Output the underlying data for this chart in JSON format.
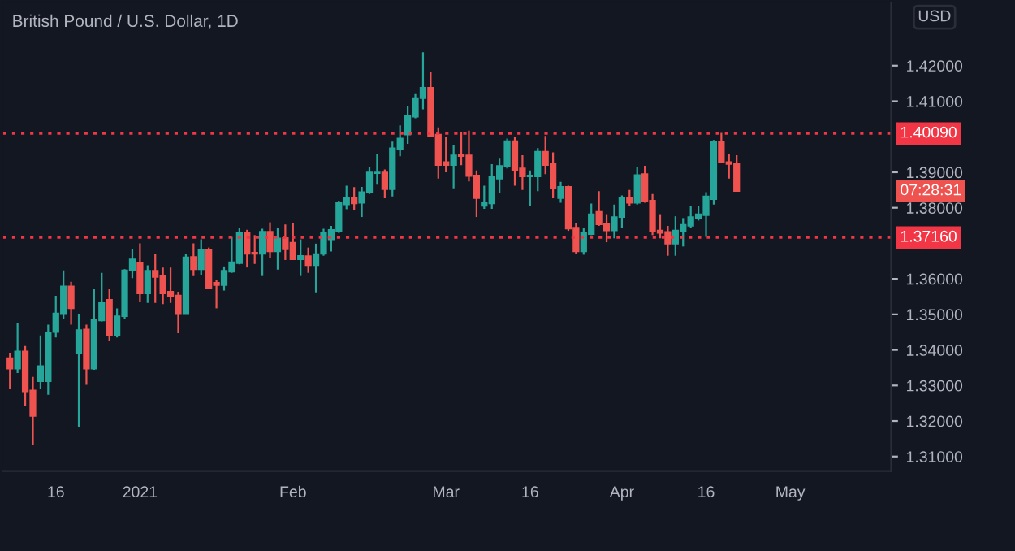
{
  "chart_data": {
    "type": "candlestick",
    "title": "British Pound / U.S. Dollar, 1D",
    "categories": [
      null,
      null,
      null,
      null,
      null,
      null,
      "16",
      null,
      null,
      null,
      null,
      null,
      null,
      null,
      null,
      null,
      null,
      "2021",
      null,
      null,
      null,
      null,
      null,
      null,
      null,
      null,
      null,
      null,
      null,
      null,
      null,
      null,
      null,
      null,
      null,
      null,
      null,
      "Feb",
      null,
      null,
      null,
      null,
      null,
      null,
      null,
      null,
      null,
      null,
      null,
      null,
      null,
      null,
      null,
      null,
      null,
      null,
      null,
      "Mar",
      null,
      null,
      null,
      null,
      null,
      null,
      null,
      null,
      null,
      null,
      "16",
      null,
      null,
      null,
      null,
      null,
      null,
      null,
      null,
      null,
      null,
      null,
      "Apr",
      null,
      null,
      null,
      null,
      null,
      null,
      null,
      null,
      null,
      null,
      "16",
      null,
      null,
      null,
      null,
      null,
      null,
      null,
      null,
      null,
      null,
      "May",
      null,
      null,
      null,
      null,
      null,
      null,
      null,
      null,
      null,
      null,
      null,
      null,
      null
    ],
    "ohlc": [
      [
        1.3377,
        1.3392,
        1.3289,
        1.3347
      ],
      [
        1.3347,
        1.3476,
        1.3335,
        1.3396
      ],
      [
        1.3396,
        1.3411,
        1.3241,
        1.3283
      ],
      [
        1.3286,
        1.3324,
        1.3132,
        1.3214
      ],
      [
        1.3312,
        1.3441,
        1.3289,
        1.3355
      ],
      [
        1.3312,
        1.3471,
        1.3274,
        1.345
      ],
      [
        1.345,
        1.3552,
        1.3435,
        1.3503
      ],
      [
        1.3503,
        1.3624,
        1.3486,
        1.3579
      ],
      [
        1.3579,
        1.3592,
        1.3471,
        1.3517
      ],
      [
        1.3392,
        1.3502,
        1.3183,
        1.3456
      ],
      [
        1.3458,
        1.3471,
        1.3302,
        1.3347
      ],
      [
        1.3347,
        1.3571,
        1.3344,
        1.3486
      ],
      [
        1.3483,
        1.3617,
        1.348,
        1.3532
      ],
      [
        1.3541,
        1.3571,
        1.3426,
        1.3442
      ],
      [
        1.3442,
        1.3517,
        1.3435,
        1.3495
      ],
      [
        1.3495,
        1.3627,
        1.3486,
        1.3624
      ],
      [
        1.3623,
        1.3685,
        1.3602,
        1.3655
      ],
      [
        1.3644,
        1.37,
        1.3536,
        1.3559
      ],
      [
        1.3559,
        1.3638,
        1.3532,
        1.3623
      ],
      [
        1.3623,
        1.367,
        1.3532,
        1.3605
      ],
      [
        1.3608,
        1.3632,
        1.3529,
        1.3559
      ],
      [
        1.3564,
        1.3632,
        1.3532,
        1.3552
      ],
      [
        1.3553,
        1.3564,
        1.3447,
        1.3503
      ],
      [
        1.3503,
        1.367,
        1.3502,
        1.3661
      ],
      [
        1.3662,
        1.37,
        1.3608,
        1.3627
      ],
      [
        1.3627,
        1.3711,
        1.3612,
        1.3683
      ],
      [
        1.3683,
        1.3688,
        1.3571,
        1.3574
      ],
      [
        1.3589,
        1.3597,
        1.3517,
        1.3582
      ],
      [
        1.3582,
        1.3635,
        1.3567,
        1.3623
      ],
      [
        1.362,
        1.3718,
        1.3617,
        1.3647
      ],
      [
        1.3644,
        1.3744,
        1.3641,
        1.3729
      ],
      [
        1.3729,
        1.3738,
        1.3632,
        1.367
      ],
      [
        1.3674,
        1.3723,
        1.3642,
        1.367
      ],
      [
        1.367,
        1.3741,
        1.3608,
        1.3733
      ],
      [
        1.3733,
        1.3759,
        1.3658,
        1.3677
      ],
      [
        1.3677,
        1.3744,
        1.3626,
        1.3714
      ],
      [
        1.3715,
        1.3753,
        1.3653,
        1.3683
      ],
      [
        1.3702,
        1.3756,
        1.3653,
        1.3655
      ],
      [
        1.3655,
        1.3711,
        1.3608,
        1.3665
      ],
      [
        1.3664,
        1.3688,
        1.3617,
        1.3638
      ],
      [
        1.3638,
        1.3699,
        1.3562,
        1.367
      ],
      [
        1.367,
        1.3741,
        1.3665,
        1.3729
      ],
      [
        1.3711,
        1.3749,
        1.3677,
        1.3738
      ],
      [
        1.3733,
        1.382,
        1.3729,
        1.3814
      ],
      [
        1.3809,
        1.3862,
        1.3796,
        1.3829
      ],
      [
        1.3829,
        1.3858,
        1.3794,
        1.3812
      ],
      [
        1.3814,
        1.3859,
        1.3774,
        1.3844
      ],
      [
        1.3844,
        1.3915,
        1.3839,
        1.39
      ],
      [
        1.3897,
        1.395,
        1.3865,
        1.39
      ],
      [
        1.39,
        1.3908,
        1.3827,
        1.3852
      ],
      [
        1.3852,
        1.3986,
        1.3832,
        1.3968
      ],
      [
        1.3965,
        1.4032,
        1.3945,
        1.3995
      ],
      [
        1.4006,
        1.4086,
        1.398,
        1.4059
      ],
      [
        1.4056,
        1.412,
        1.4052,
        1.4109
      ],
      [
        1.4108,
        1.4238,
        1.4077,
        1.4138
      ],
      [
        1.4138,
        1.4183,
        1.3998,
        1.4002
      ],
      [
        1.4006,
        1.4026,
        1.3882,
        1.392
      ],
      [
        1.3929,
        1.3998,
        1.39,
        1.392
      ],
      [
        1.392,
        1.3976,
        1.3855,
        1.3948
      ],
      [
        1.395,
        1.4014,
        1.392,
        1.3945
      ],
      [
        1.3948,
        1.4017,
        1.3874,
        1.3889
      ],
      [
        1.3891,
        1.3905,
        1.3774,
        1.3827
      ],
      [
        1.3805,
        1.3862,
        1.3797,
        1.3814
      ],
      [
        1.3812,
        1.3923,
        1.3797,
        1.3888
      ],
      [
        1.3882,
        1.3938,
        1.3842,
        1.3918
      ],
      [
        1.3918,
        1.3995,
        1.3911,
        1.3988
      ],
      [
        1.3988,
        1.3998,
        1.3862,
        1.3905
      ],
      [
        1.3911,
        1.3948,
        1.385,
        1.3888
      ],
      [
        1.3888,
        1.3905,
        1.3805,
        1.3891
      ],
      [
        1.3888,
        1.3968,
        1.3847,
        1.3958
      ],
      [
        1.3958,
        1.4002,
        1.3895,
        1.392
      ],
      [
        1.3923,
        1.3956,
        1.3827,
        1.3855
      ],
      [
        1.3827,
        1.3873,
        1.3814,
        1.3859
      ],
      [
        1.3859,
        1.3862,
        1.3735,
        1.3741
      ],
      [
        1.3744,
        1.3756,
        1.367,
        1.3677
      ],
      [
        1.3677,
        1.3744,
        1.3668,
        1.3729
      ],
      [
        1.3726,
        1.3812,
        1.3723,
        1.3782
      ],
      [
        1.3789,
        1.3847,
        1.3749,
        1.3753
      ],
      [
        1.3756,
        1.3782,
        1.3703,
        1.3736
      ],
      [
        1.3736,
        1.3809,
        1.3714,
        1.3774
      ],
      [
        1.3774,
        1.3835,
        1.3744,
        1.3827
      ],
      [
        1.3827,
        1.385,
        1.3805,
        1.3814
      ],
      [
        1.3814,
        1.3915,
        1.3809,
        1.3892
      ],
      [
        1.3895,
        1.3918,
        1.3814,
        1.3817
      ],
      [
        1.382,
        1.3839,
        1.3723,
        1.3733
      ],
      [
        1.3736,
        1.3782,
        1.3714,
        1.3729
      ],
      [
        1.3732,
        1.3749,
        1.3665,
        1.3699
      ],
      [
        1.3699,
        1.3776,
        1.3665,
        1.3736
      ],
      [
        1.3733,
        1.3771,
        1.3691,
        1.3752
      ],
      [
        1.3749,
        1.3806,
        1.3744,
        1.3774
      ],
      [
        1.3771,
        1.3806,
        1.3764,
        1.3782
      ],
      [
        1.3779,
        1.3844,
        1.3718,
        1.3832
      ],
      [
        1.3824,
        1.3991,
        1.3809,
        1.3986
      ],
      [
        1.3986,
        1.4011,
        1.3926,
        1.3927
      ],
      [
        1.3929,
        1.395,
        1.3882,
        1.3923
      ],
      [
        1.3923,
        1.3948,
        1.3847,
        1.3847
      ],
      null,
      null,
      null,
      null,
      null,
      null,
      null,
      null,
      null,
      null,
      null,
      null,
      null,
      null,
      null,
      null,
      null,
      null,
      null,
      null
    ],
    "colors": [
      "#ef5350",
      "#26a69a",
      "#ef5350",
      "#ef5350",
      "#26a69a",
      "#26a69a",
      "#26a69a",
      "#26a69a",
      "#ef5350",
      "#26a69a",
      "#ef5350",
      "#26a69a",
      "#26a69a",
      "#ef5350",
      "#26a69a",
      "#26a69a",
      "#26a69a",
      "#ef5350",
      "#26a69a",
      "#ef5350",
      "#ef5350",
      "#ef5350",
      "#ef5350",
      "#26a69a",
      "#ef5350",
      "#26a69a",
      "#ef5350",
      "#ef5350",
      "#26a69a",
      "#26a69a",
      "#26a69a",
      "#ef5350",
      "#ef5350",
      "#26a69a",
      "#ef5350",
      "#26a69a",
      "#ef5350",
      "#ef5350",
      "#26a69a",
      "#ef5350",
      "#26a69a",
      "#26a69a",
      "#26a69a",
      "#26a69a",
      "#26a69a",
      "#ef5350",
      "#26a69a",
      "#26a69a",
      "#26a69a",
      "#ef5350",
      "#26a69a",
      "#26a69a",
      "#26a69a",
      "#26a69a",
      "#26a69a",
      "#ef5350",
      "#ef5350",
      "#ef5350",
      "#26a69a",
      "#ef5350",
      "#ef5350",
      "#ef5350",
      "#26a69a",
      "#26a69a",
      "#26a69a",
      "#26a69a",
      "#ef5350",
      "#ef5350",
      "#26a69a",
      "#26a69a",
      "#ef5350",
      "#ef5350",
      "#26a69a",
      "#ef5350",
      "#ef5350",
      "#26a69a",
      "#26a69a",
      "#ef5350",
      "#ef5350",
      "#26a69a",
      "#26a69a",
      "#ef5350",
      "#26a69a",
      "#ef5350",
      "#ef5350",
      "#ef5350",
      "#ef5350",
      "#26a69a",
      "#26a69a",
      "#26a69a",
      "#26a69a",
      "#26a69a",
      "#26a69a",
      "#ef5350",
      "#ef5350",
      "#ef5350",
      null,
      null,
      null,
      null,
      null,
      null,
      null,
      null,
      null,
      null,
      null,
      null,
      null,
      null,
      null,
      null,
      null,
      null,
      null,
      null
    ],
    "ylim": [
      1.3059,
      1.4377
    ],
    "yticks": [
      {
        "value": 1.31,
        "label": "1.31000"
      },
      {
        "value": 1.32,
        "label": "1.32000"
      },
      {
        "value": 1.33,
        "label": "1.33000"
      },
      {
        "value": 1.34,
        "label": "1.34000"
      },
      {
        "value": 1.35,
        "label": "1.35000"
      },
      {
        "value": 1.36,
        "label": "1.36000"
      },
      {
        "value": 1.38,
        "label": "1.38000"
      },
      {
        "value": 1.39,
        "label": "1.39000"
      },
      {
        "value": 1.41,
        "label": "1.41000"
      },
      {
        "value": 1.42,
        "label": "1.42000"
      }
    ],
    "ref_lines": [
      {
        "axis": "y",
        "value": 1.4009,
        "label": "1.40090",
        "color": "#f23645",
        "line_style": "dotted"
      },
      {
        "axis": "y",
        "value": 1.3716,
        "label": "1.37160",
        "color": "#f23645",
        "line_style": "dotted"
      }
    ],
    "annotations": [
      "USD",
      "07:28:31"
    ],
    "grid": false,
    "legend": false
  }
}
